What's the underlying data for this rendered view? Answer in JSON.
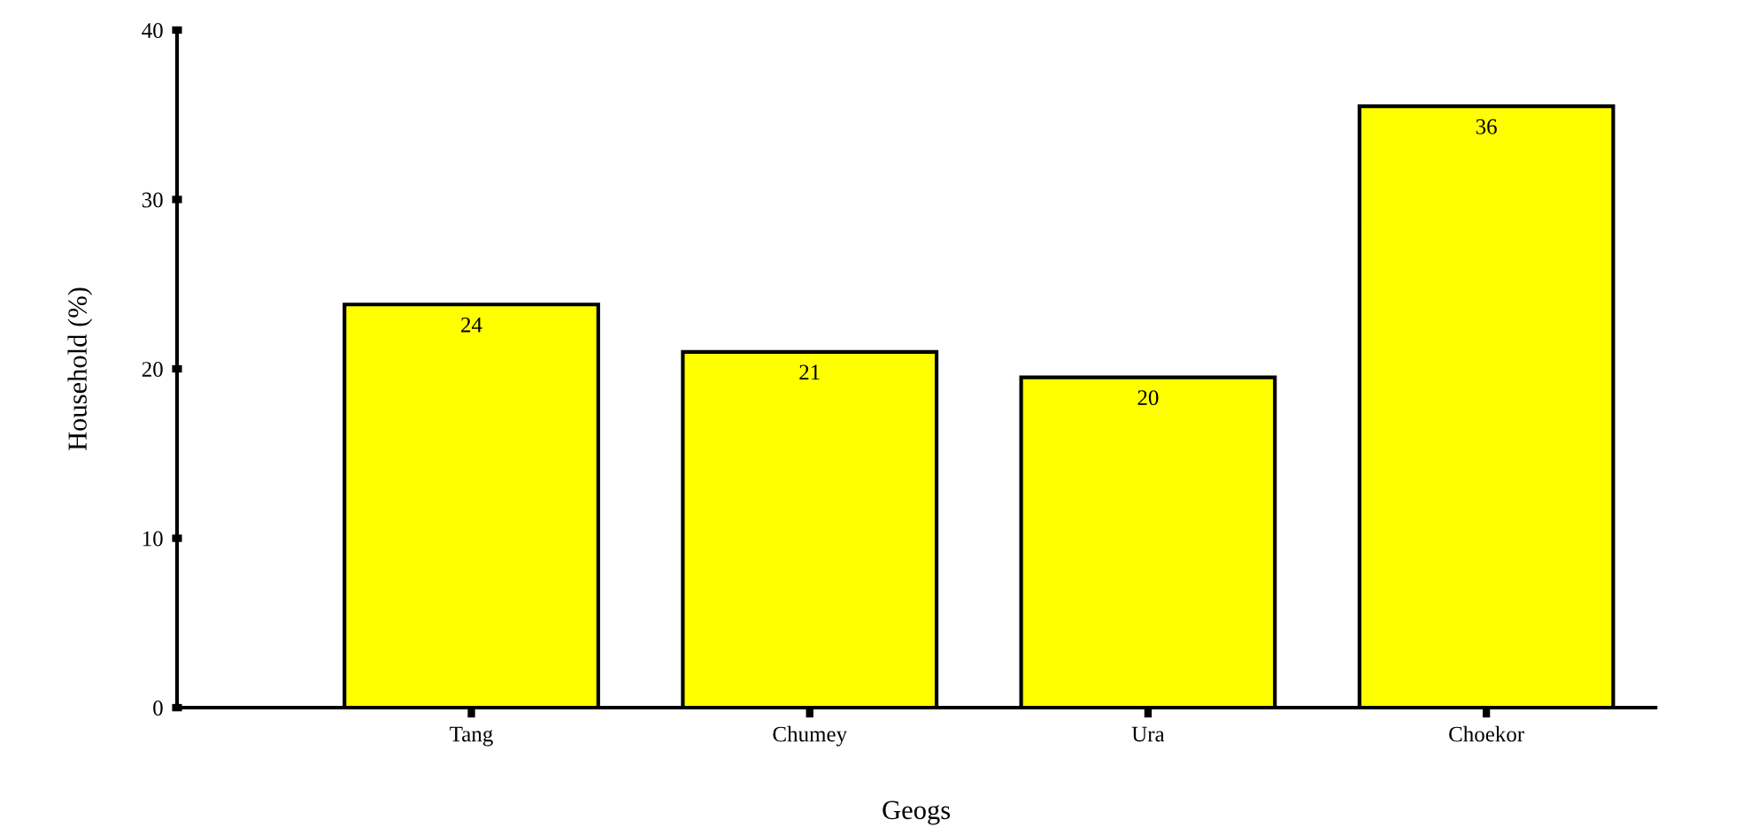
{
  "chart_data": {
    "type": "bar",
    "xlabel": "Geogs",
    "ylabel": "Household (%)",
    "categories": [
      "Tang",
      "Chumey",
      "Ura",
      "Choekor"
    ],
    "values": [
      23.8,
      21.0,
      19.5,
      35.5
    ],
    "value_labels": [
      "24",
      "21",
      "20",
      "36"
    ],
    "color": "#ffff00",
    "ylim": [
      0,
      40
    ],
    "yticks": [
      0,
      10,
      20,
      30,
      40
    ],
    "grid": false,
    "legend": false
  }
}
